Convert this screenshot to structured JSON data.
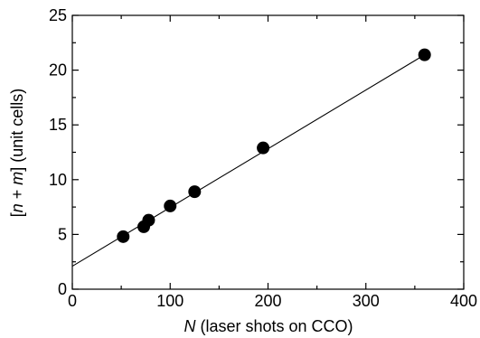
{
  "chart_data": {
    "type": "scatter",
    "title": "",
    "xlabel": {
      "italic": "N",
      "rest": " (laser shots on CCO)"
    },
    "ylabel": {
      "open": "[",
      "n": "n",
      "plus": " + ",
      "m": "m",
      "rest": "] (unit cells)"
    },
    "xlim": [
      0,
      400
    ],
    "ylim": [
      0,
      25
    ],
    "xticks": [
      0,
      100,
      200,
      300,
      400
    ],
    "yticks": [
      0,
      5,
      10,
      15,
      20,
      25
    ],
    "grid": false,
    "legend": "none",
    "points": [
      {
        "x": 52,
        "y": 4.8
      },
      {
        "x": 73,
        "y": 5.7
      },
      {
        "x": 78,
        "y": 6.3
      },
      {
        "x": 100,
        "y": 7.6
      },
      {
        "x": 125,
        "y": 8.9
      },
      {
        "x": 195,
        "y": 12.9
      },
      {
        "x": 360,
        "y": 21.4
      }
    ],
    "fit_line": {
      "x": [
        0,
        360
      ],
      "y": [
        2.1,
        21.4
      ]
    },
    "colors": {
      "marker": "#000000",
      "line": "#000000",
      "axes": "#000000"
    }
  }
}
